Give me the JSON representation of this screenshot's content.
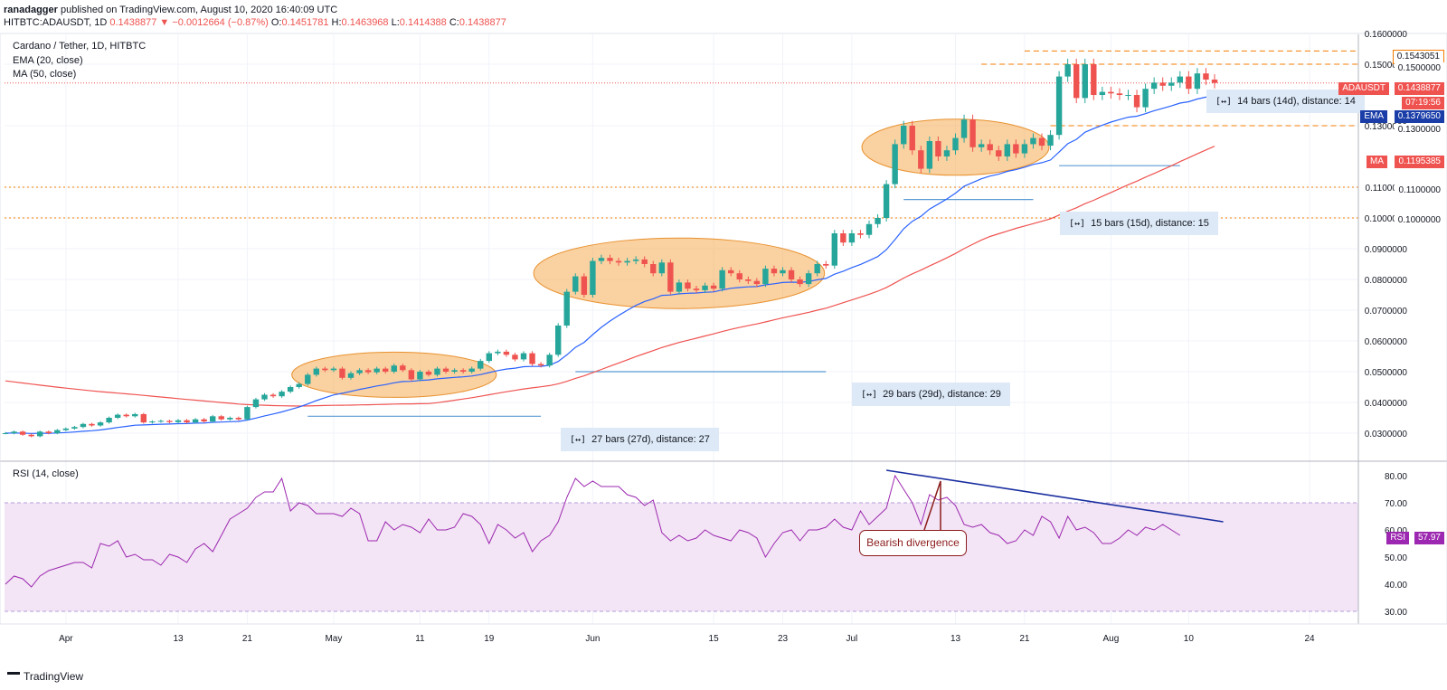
{
  "header": {
    "publisher": "ranadagger",
    "published_text": "published on TradingView.com, August 10, 2020 16:40:09 UTC",
    "symbol": "HITBTC:ADAUSDT, 1D",
    "last": "0.1438877",
    "change_arrow": "▼",
    "change": "−0.0012664 (−0.87%)",
    "open_label": "O:",
    "open": "0.1451781",
    "high_label": "H:",
    "high": "0.1463968",
    "low_label": "L:",
    "low": "0.1414388",
    "close_label": "C:",
    "close": "0.1438877"
  },
  "legend": {
    "title": "Cardano / Tether, 1D, HITBTC",
    "ema": "EMA (20, close)",
    "ma": "MA (50, close)",
    "rsi": "RSI (14, close)"
  },
  "price_tags": {
    "symbol": "ADAUSDT",
    "symbol_value": "0.1438877",
    "countdown": "07:19:56",
    "ema_label": "EMA",
    "ema_value": "0.1379650",
    "ma_label": "MA",
    "ma_value": "0.1195385",
    "level1": "0.1543051",
    "level2": "0.1500000",
    "level3": "0.1300000",
    "level4": "0.1100000",
    "level5": "0.1000000",
    "rsi_label": "RSI",
    "rsi_value": "57.97"
  },
  "colors": {
    "up": "#26a69a",
    "down": "#ef5350",
    "ema": "#2962ff",
    "ma": "#ef5350",
    "rsi": "#9c27b0",
    "rsi_band": "#f3e5f5",
    "ellipse": "#f7b360",
    "levels": "#f57c00",
    "trendline": "#1a2ea0",
    "measure_line": "#5b9bd5"
  },
  "measures": [
    {
      "label": "27 bars (27d), distance: 27"
    },
    {
      "label": "29 bars (29d), distance: 29"
    },
    {
      "label": "15 bars (15d), distance: 15"
    },
    {
      "label": "14 bars (14d), distance: 14"
    }
  ],
  "annotations": {
    "bearish": "Bearish divergence"
  },
  "footer": {
    "brand": "TradingView"
  },
  "chart_data": {
    "type": "candlestick",
    "title": "Cardano / Tether, 1D, HITBTC",
    "price_ticks": [
      "0.1600000",
      "0.1500000",
      "0.1300000",
      "0.1100000",
      "0.1000000",
      "0.0900000",
      "0.0800000",
      "0.0700000",
      "0.0600000",
      "0.0500000",
      "0.0400000",
      "0.0300000"
    ],
    "price_tick_values": [
      0.16,
      0.15,
      0.13,
      0.11,
      0.1,
      0.09,
      0.08,
      0.07,
      0.06,
      0.05,
      0.04,
      0.03
    ],
    "rsi_ticks": [
      "80.00",
      "70.00",
      "60.00",
      "50.00",
      "40.00",
      "30.00"
    ],
    "rsi_tick_values": [
      80,
      70,
      60,
      50,
      40,
      30
    ],
    "x_ticks": [
      "Apr",
      "13",
      "21",
      "May",
      "11",
      "19",
      "Jun",
      "15",
      "23",
      "Jul",
      "13",
      "21",
      "Aug",
      "10",
      "24"
    ],
    "x_tick_days": [
      7,
      20,
      28,
      38,
      48,
      56,
      68,
      82,
      90,
      98,
      110,
      118,
      128,
      137,
      151
    ],
    "start_date": "2020-03-25",
    "horizontal_levels": [
      0.1543051,
      0.15,
      0.13,
      0.11,
      0.1
    ],
    "close": [
      0.03,
      0.0305,
      0.0295,
      0.029,
      0.0305,
      0.03,
      0.031,
      0.0315,
      0.032,
      0.033,
      0.0325,
      0.0335,
      0.035,
      0.036,
      0.0355,
      0.0362,
      0.0335,
      0.0338,
      0.034,
      0.0336,
      0.0342,
      0.0335,
      0.0345,
      0.0338,
      0.0355,
      0.0345,
      0.035,
      0.0345,
      0.0385,
      0.041,
      0.0425,
      0.042,
      0.0435,
      0.045,
      0.046,
      0.049,
      0.051,
      0.0505,
      0.051,
      0.048,
      0.0495,
      0.0505,
      0.0498,
      0.051,
      0.05,
      0.052,
      0.0505,
      0.0475,
      0.05,
      0.049,
      0.051,
      0.05,
      0.0505,
      0.05,
      0.051,
      0.0535,
      0.056,
      0.0565,
      0.0555,
      0.054,
      0.056,
      0.0525,
      0.052,
      0.0555,
      0.065,
      0.076,
      0.081,
      0.075,
      0.086,
      0.087,
      0.086,
      0.0855,
      0.086,
      0.0865,
      0.085,
      0.082,
      0.0855,
      0.076,
      0.079,
      0.077,
      0.0765,
      0.078,
      0.077,
      0.083,
      0.082,
      0.08,
      0.0795,
      0.0785,
      0.0835,
      0.082,
      0.083,
      0.08,
      0.0785,
      0.082,
      0.085,
      0.0845,
      0.095,
      0.092,
      0.095,
      0.0945,
      0.098,
      0.1,
      0.111,
      0.124,
      0.13,
      0.122,
      0.116,
      0.125,
      0.12,
      0.122,
      0.126,
      0.132,
      0.123,
      0.124,
      0.122,
      0.12,
      0.124,
      0.121,
      0.124,
      0.126,
      0.1235,
      0.127,
      0.146,
      0.15,
      0.139,
      0.15,
      0.14,
      0.141,
      0.1405,
      0.14,
      0.14,
      0.136,
      0.142,
      0.144,
      0.143,
      0.144,
      0.146,
      0.142,
      0.147,
      0.145,
      0.1439
    ],
    "rsi": [
      40,
      43,
      42,
      39,
      43,
      45,
      46,
      47,
      48,
      48,
      46,
      55,
      54,
      56,
      50,
      51,
      49,
      49,
      47,
      51,
      50,
      48,
      53,
      55,
      52,
      58,
      64,
      66,
      68,
      72,
      74,
      74,
      79,
      67,
      70,
      69,
      66,
      66,
      66,
      65,
      68,
      66,
      56,
      56,
      63,
      60,
      62,
      61,
      59,
      64,
      60,
      60,
      61,
      66,
      65,
      62,
      55,
      62,
      60,
      57,
      59,
      52,
      56,
      58,
      63,
      72,
      79,
      76,
      78,
      76,
      76,
      76,
      73,
      72,
      69,
      71,
      59,
      56,
      58,
      56,
      57,
      60,
      58,
      57,
      56,
      60,
      59,
      57,
      50,
      55,
      59,
      60,
      56,
      60,
      60,
      61,
      64,
      61,
      60,
      67,
      62,
      65,
      68,
      80,
      75,
      70,
      62,
      73,
      71,
      72,
      69,
      62,
      61,
      62,
      59,
      58,
      55,
      56,
      60,
      58,
      65,
      63,
      57,
      65,
      60,
      61,
      59,
      55,
      55,
      57,
      60,
      58,
      61,
      60,
      62,
      60,
      58
    ]
  }
}
